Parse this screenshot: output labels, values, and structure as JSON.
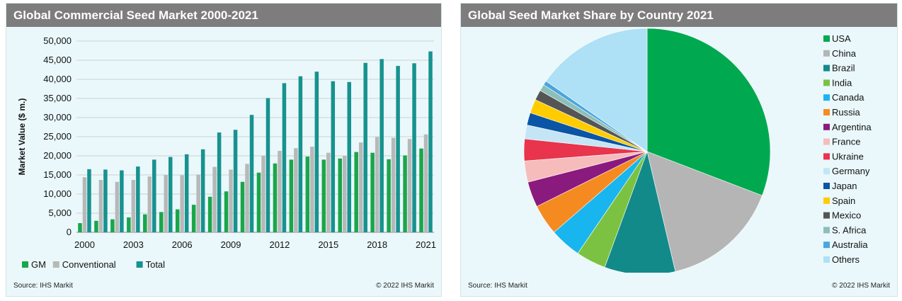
{
  "left_panel": {
    "title": "Global Commercial Seed Market 2000-2021",
    "source": "Source: IHS Markit",
    "copyright": "© 2022 IHS Markit"
  },
  "right_panel": {
    "title": "Global Seed Market Share by Country 2021",
    "source": "Source: IHS Markit",
    "copyright": "© 2022 IHS Markit"
  },
  "chart_data": [
    {
      "type": "bar",
      "title": "Global Commercial Seed Market 2000-2021",
      "ylabel": "Market Value ($ m.)",
      "xlabel": "",
      "ylim": [
        0,
        50000
      ],
      "y_ticks": [
        "0",
        "5,000",
        "10,000",
        "15,000",
        "20,000",
        "25,000",
        "30,000",
        "35,000",
        "40,000",
        "45,000",
        "50,000"
      ],
      "y_tick_values": [
        0,
        5000,
        10000,
        15000,
        20000,
        25000,
        30000,
        35000,
        40000,
        45000,
        50000
      ],
      "categories": [
        "2000",
        "2001",
        "2002",
        "2003",
        "2004",
        "2005",
        "2006",
        "2007",
        "2008",
        "2009",
        "2010",
        "2011",
        "2012",
        "2013",
        "2014",
        "2015",
        "2016",
        "2017",
        "2018",
        "2019",
        "2020",
        "2021"
      ],
      "x_tick_labels": [
        "2000",
        "",
        "",
        "2003",
        "",
        "",
        "2006",
        "",
        "",
        "2009",
        "",
        "",
        "2012",
        "",
        "",
        "2015",
        "",
        "",
        "2018",
        "",
        "",
        "2021"
      ],
      "grid": true,
      "legend_position": "bottom-left",
      "series": [
        {
          "name": "GM",
          "color": "#1aa64a",
          "values": [
            2400,
            3000,
            3400,
            3900,
            4700,
            5300,
            6000,
            7200,
            9300,
            10700,
            13200,
            15600,
            18000,
            19000,
            19800,
            19000,
            19300,
            21000,
            20800,
            19100,
            20100,
            21900
          ]
        },
        {
          "name": "Conventional",
          "color": "#b8b8b8",
          "values": [
            14400,
            13700,
            13200,
            13700,
            14600,
            15000,
            14900,
            15100,
            17100,
            16400,
            17900,
            20000,
            21300,
            22000,
            22400,
            20800,
            20000,
            23500,
            24900,
            24700,
            24400,
            25600
          ]
        },
        {
          "name": "Total",
          "color": "#17928f",
          "values": [
            16500,
            16400,
            16200,
            17200,
            19000,
            19700,
            20400,
            21700,
            26100,
            26800,
            30700,
            35100,
            39000,
            40800,
            42000,
            39500,
            39300,
            44300,
            45300,
            43500,
            44200,
            47300
          ]
        }
      ]
    },
    {
      "type": "pie",
      "title": "Global Seed Market Share by Country 2021",
      "legend_position": "right",
      "labels": [
        "USA",
        "China",
        "Brazil",
        "India",
        "Canada",
        "Russia",
        "Argentina",
        "France",
        "Ukraine",
        "Germany",
        "Japan",
        "Spain",
        "Mexico",
        "S. Africa",
        "Australia",
        "Others"
      ],
      "colors": [
        "#00a94f",
        "#b5b5b5",
        "#138a8a",
        "#7cc242",
        "#19b5ee",
        "#f58b20",
        "#8b1a7e",
        "#f6bcbc",
        "#e8344c",
        "#c4e5f6",
        "#0a55a5",
        "#ffcc00",
        "#555555",
        "#8dbfb9",
        "#4aa5e0",
        "#aee0f6"
      ],
      "values": [
        32.2,
        16.2,
        9.7,
        4.1,
        4.3,
        4.2,
        3.5,
        2.9,
        3.0,
        1.9,
        1.7,
        1.9,
        1.4,
        0.9,
        0.6,
        16.0
      ]
    }
  ]
}
